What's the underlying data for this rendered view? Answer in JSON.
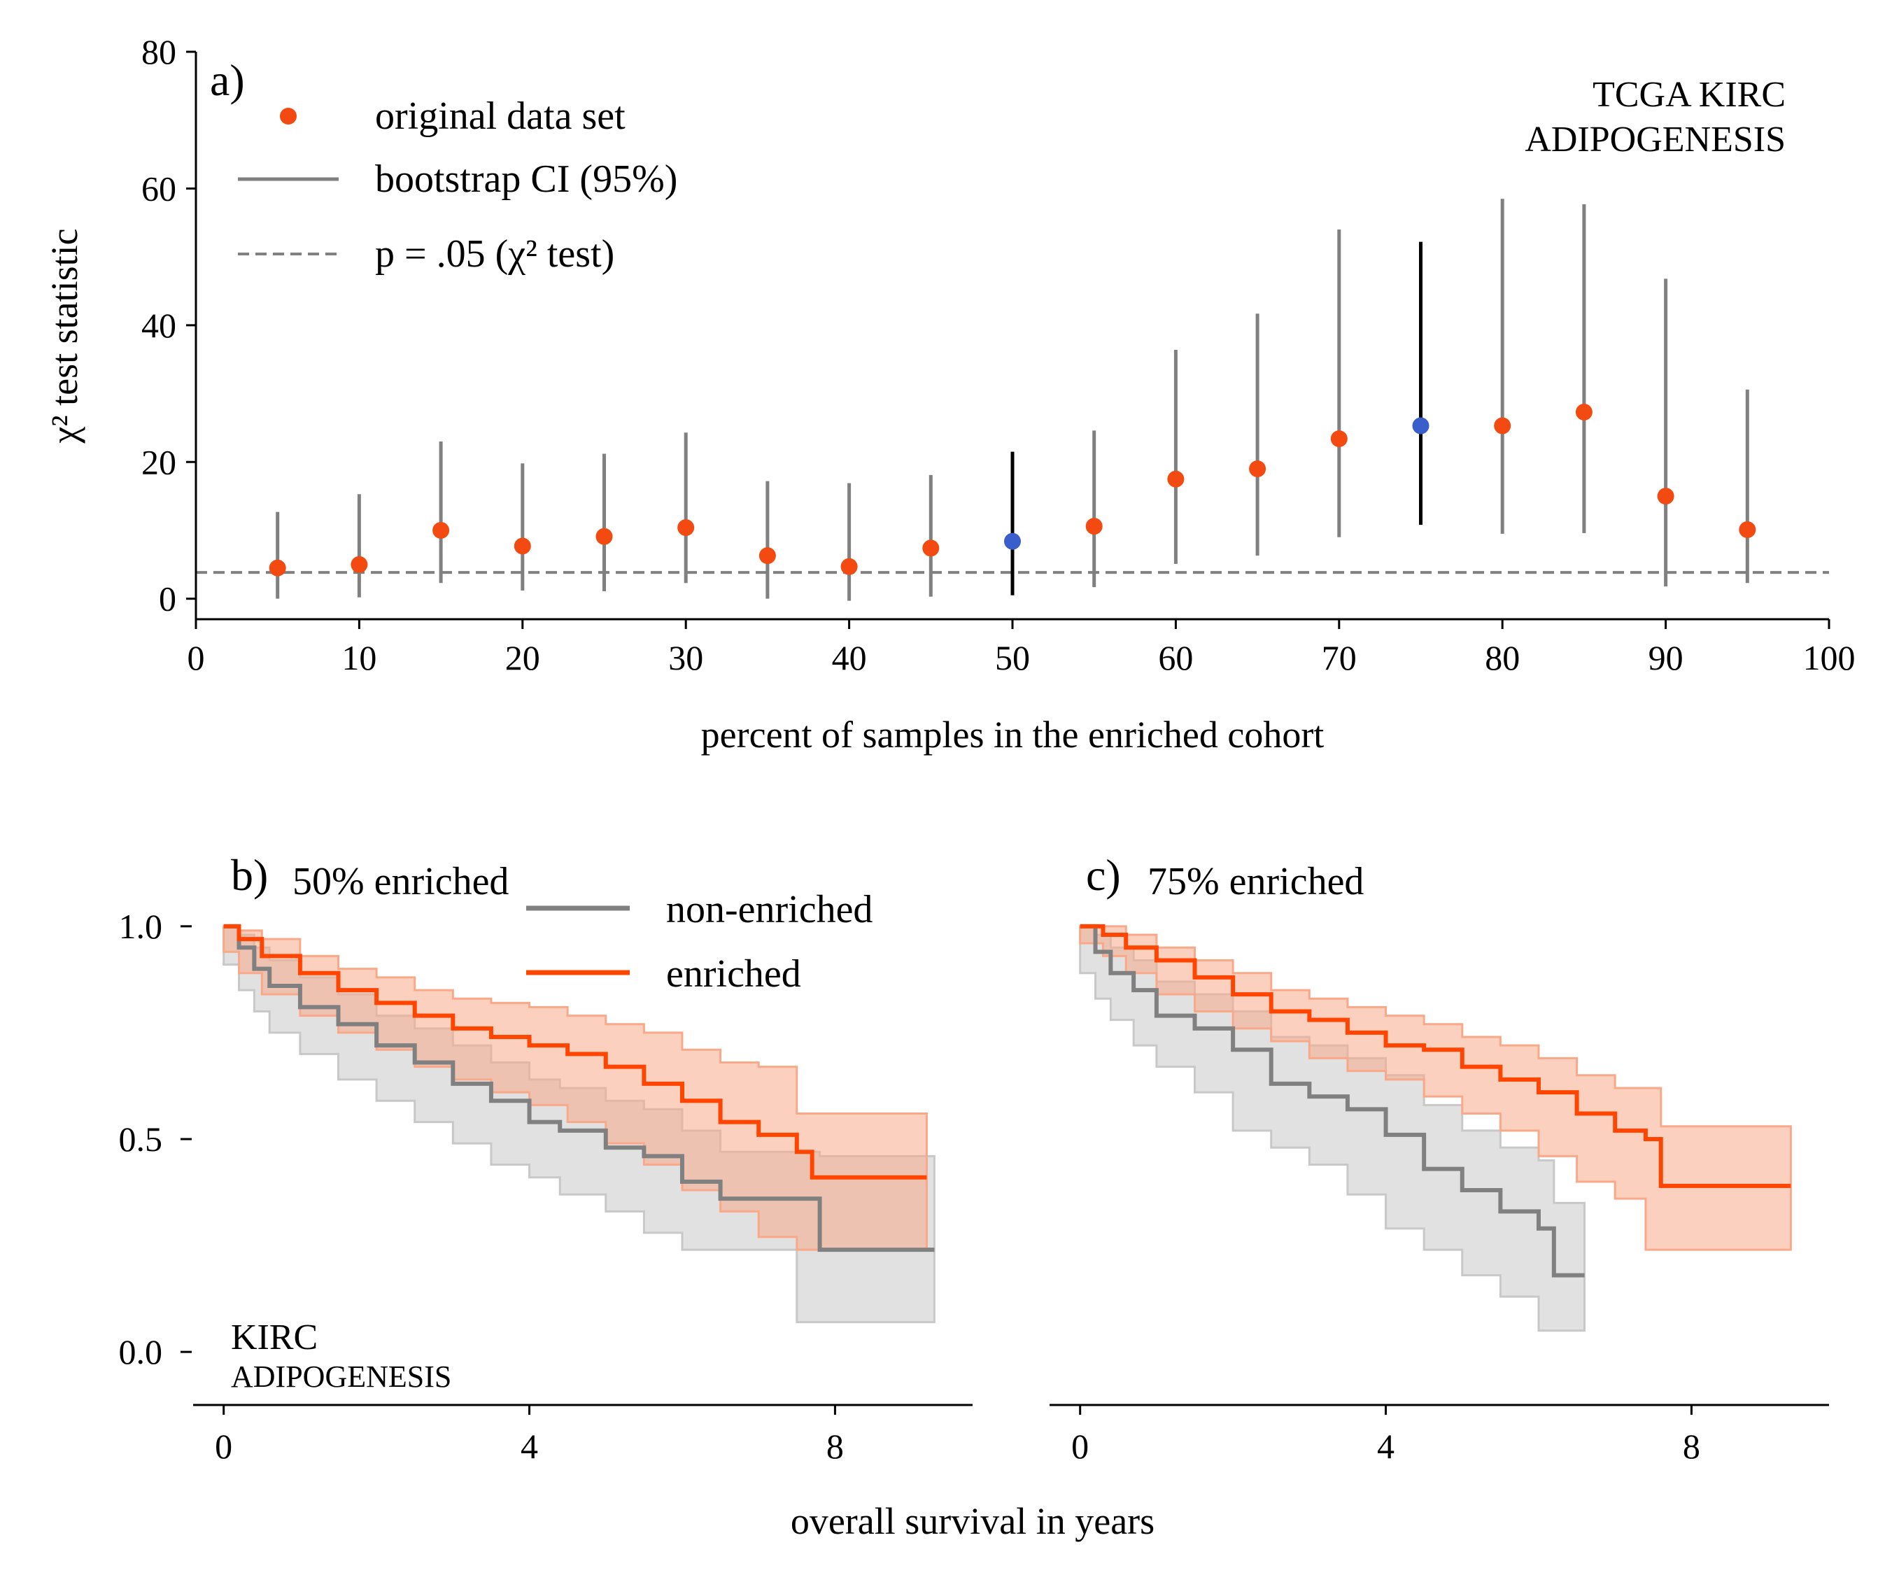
{
  "colors": {
    "original": "#f24a10",
    "highlight": "#3a5fcd",
    "ci_gray": "#808080",
    "ci_highlight": "#000000",
    "enriched": "#ff4500",
    "enriched_band": "#f9a98a",
    "non_enriched": "#808080",
    "non_enriched_band": "#c8c8c8"
  },
  "chart_data": [
    {
      "type": "scatter",
      "panel_label": "a)",
      "annotation": [
        "TCGA KIRC",
        "ADIPOGENESIS"
      ],
      "xlabel": "percent of samples in the enriched cohort",
      "ylabel": "χ² test statistic",
      "xlim": [
        0,
        100
      ],
      "ylim": [
        -3,
        80
      ],
      "xticks": [
        "0",
        "10",
        "20",
        "30",
        "40",
        "50",
        "60",
        "70",
        "80",
        "90",
        "100"
      ],
      "yticks": [
        "0",
        "20",
        "40",
        "60",
        "80"
      ],
      "legend": {
        "placement": "top-left",
        "entries": [
          "original data set",
          "bootstrap CI (95%)",
          "p = .05 (χ² test)"
        ]
      },
      "threshold": 3.84,
      "series": [
        {
          "name": "original data set",
          "x": [
            5,
            10,
            15,
            20,
            25,
            30,
            35,
            40,
            45,
            50,
            55,
            60,
            65,
            70,
            75,
            80,
            85,
            90,
            95
          ],
          "y": [
            4.5,
            5.0,
            10.0,
            7.7,
            9.1,
            10.4,
            6.3,
            4.7,
            7.4,
            8.4,
            10.6,
            17.5,
            19.0,
            23.4,
            25.3,
            25.3,
            27.3,
            15.0,
            10.1
          ],
          "ci_low": [
            0.0,
            0.2,
            2.3,
            1.2,
            1.1,
            2.3,
            0.0,
            -0.3,
            0.3,
            0.5,
            1.7,
            5.1,
            6.3,
            9.0,
            10.8,
            9.5,
            9.6,
            1.8,
            2.3
          ],
          "ci_high": [
            12.7,
            15.3,
            23.0,
            19.8,
            21.2,
            24.3,
            17.2,
            16.9,
            18.1,
            21.5,
            24.6,
            36.4,
            41.7,
            54.0,
            52.2,
            58.5,
            57.7,
            46.8,
            30.6
          ],
          "highlighted_x": [
            50,
            75
          ]
        }
      ]
    },
    {
      "type": "line",
      "panel_label": "b)",
      "panel_title": "50% enriched",
      "annotation": [
        "KIRC",
        "ADIPOGENESIS"
      ],
      "xticks": [
        "0",
        "4",
        "8"
      ],
      "yticks": [
        "0.0",
        "0.5",
        "1.0"
      ],
      "xlim": [
        -0.4,
        9.8
      ],
      "ylim": [
        -0.1,
        1.1
      ],
      "legend": {
        "placement": "top-center",
        "entries": [
          "non-enriched",
          "enriched"
        ]
      },
      "series": [
        {
          "name": "non-enriched",
          "x": [
            0,
            0.2,
            0.4,
            0.6,
            1.0,
            1.5,
            2.0,
            2.5,
            3.0,
            3.5,
            4.0,
            4.4,
            5.0,
            5.5,
            6.0,
            6.5,
            7.0,
            7.5,
            7.8,
            9.3
          ],
          "y": [
            1.0,
            0.95,
            0.9,
            0.86,
            0.81,
            0.77,
            0.72,
            0.68,
            0.63,
            0.59,
            0.54,
            0.52,
            0.48,
            0.46,
            0.4,
            0.36,
            0.36,
            0.36,
            0.24,
            0.24
          ],
          "ci_low": [
            1.0,
            0.91,
            0.85,
            0.8,
            0.75,
            0.7,
            0.64,
            0.59,
            0.54,
            0.49,
            0.44,
            0.41,
            0.37,
            0.33,
            0.28,
            0.24,
            0.24,
            0.24,
            0.07,
            0.07
          ],
          "ci_high": [
            1.0,
            0.98,
            0.95,
            0.92,
            0.88,
            0.84,
            0.79,
            0.76,
            0.72,
            0.68,
            0.64,
            0.62,
            0.59,
            0.57,
            0.52,
            0.47,
            0.47,
            0.47,
            0.46,
            0.46
          ]
        },
        {
          "name": "enriched",
          "x": [
            0,
            0.2,
            0.5,
            1.0,
            1.5,
            2.0,
            2.5,
            3.0,
            3.5,
            4.0,
            4.5,
            5.0,
            5.5,
            6.0,
            6.5,
            7.0,
            7.5,
            7.7,
            9.2
          ],
          "y": [
            1.0,
            0.97,
            0.93,
            0.89,
            0.85,
            0.82,
            0.79,
            0.76,
            0.74,
            0.72,
            0.7,
            0.67,
            0.63,
            0.59,
            0.54,
            0.51,
            0.47,
            0.41,
            0.41
          ],
          "ci_low": [
            1.0,
            0.94,
            0.89,
            0.84,
            0.79,
            0.75,
            0.71,
            0.67,
            0.64,
            0.61,
            0.58,
            0.54,
            0.49,
            0.44,
            0.38,
            0.33,
            0.27,
            0.24,
            0.24
          ],
          "ci_high": [
            1.0,
            0.99,
            0.97,
            0.93,
            0.9,
            0.88,
            0.85,
            0.83,
            0.82,
            0.81,
            0.79,
            0.77,
            0.75,
            0.71,
            0.68,
            0.67,
            0.56,
            0.56,
            0.56
          ]
        }
      ]
    },
    {
      "type": "line",
      "panel_label": "c)",
      "panel_title": "75% enriched",
      "xticks": [
        "0",
        "4",
        "8"
      ],
      "xlim": [
        -0.4,
        9.8
      ],
      "ylim": [
        -0.1,
        1.1
      ],
      "series": [
        {
          "name": "non-enriched",
          "x": [
            0,
            0.2,
            0.4,
            0.7,
            1.0,
            1.5,
            2.0,
            2.5,
            3.0,
            3.5,
            4.0,
            4.5,
            5.0,
            5.5,
            6.0,
            6.2,
            6.6
          ],
          "y": [
            1.0,
            0.94,
            0.89,
            0.85,
            0.79,
            0.76,
            0.71,
            0.63,
            0.6,
            0.57,
            0.51,
            0.43,
            0.38,
            0.33,
            0.29,
            0.18,
            0.18
          ],
          "ci_low": [
            1.0,
            0.89,
            0.83,
            0.78,
            0.72,
            0.67,
            0.61,
            0.52,
            0.48,
            0.44,
            0.37,
            0.29,
            0.24,
            0.18,
            0.13,
            0.05,
            0.05
          ],
          "ci_high": [
            1.0,
            0.98,
            0.95,
            0.92,
            0.87,
            0.84,
            0.8,
            0.74,
            0.72,
            0.69,
            0.65,
            0.58,
            0.52,
            0.48,
            0.45,
            0.35,
            0.35
          ]
        },
        {
          "name": "enriched",
          "x": [
            0,
            0.3,
            0.6,
            1.0,
            1.5,
            2.0,
            2.5,
            3.0,
            3.5,
            4.0,
            4.5,
            5.0,
            5.5,
            6.0,
            6.5,
            7.0,
            7.4,
            7.6,
            9.3
          ],
          "y": [
            1.0,
            0.98,
            0.95,
            0.92,
            0.88,
            0.84,
            0.8,
            0.78,
            0.75,
            0.72,
            0.71,
            0.67,
            0.64,
            0.61,
            0.56,
            0.52,
            0.5,
            0.39,
            0.39
          ],
          "ci_low": [
            1.0,
            0.96,
            0.93,
            0.89,
            0.84,
            0.8,
            0.76,
            0.73,
            0.69,
            0.66,
            0.64,
            0.6,
            0.56,
            0.52,
            0.46,
            0.4,
            0.36,
            0.24,
            0.24
          ],
          "ci_high": [
            1.0,
            1.0,
            0.98,
            0.95,
            0.92,
            0.89,
            0.85,
            0.83,
            0.81,
            0.79,
            0.77,
            0.74,
            0.72,
            0.69,
            0.65,
            0.62,
            0.62,
            0.53,
            0.53
          ]
        }
      ]
    }
  ],
  "shared_xlabel": "overall survival in years"
}
